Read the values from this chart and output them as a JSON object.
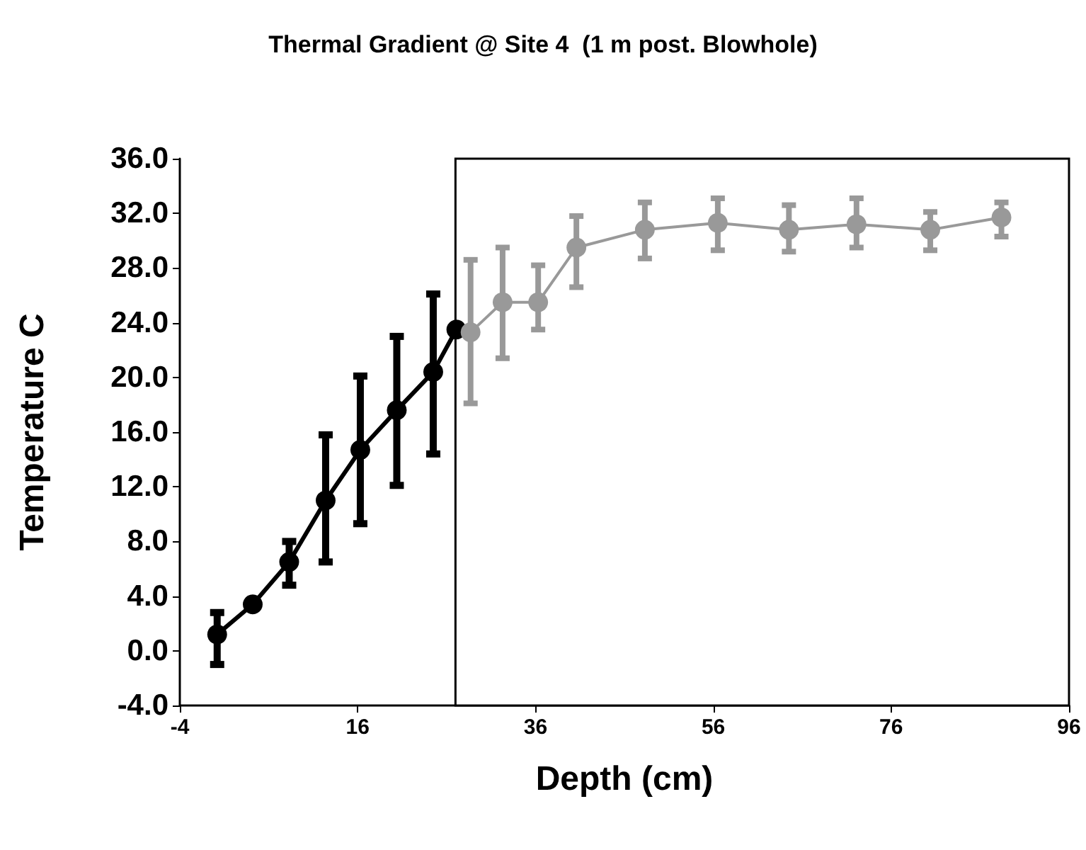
{
  "chart_data": {
    "type": "line",
    "title": "Thermal Gradient @ Site 4  (1 m post. Blowhole)",
    "xlabel": "Depth (cm)",
    "ylabel": "Temperature C",
    "series": [
      {
        "color": "#000000",
        "x": [
          0.2,
          4.2,
          8.3,
          12.4,
          16.3,
          20.4,
          24.5,
          27.1
        ],
        "values": [
          1.2,
          3.4,
          6.5,
          11.0,
          14.7,
          17.6,
          20.4,
          23.5
        ],
        "errors": [
          [
            -1.0,
            2.8
          ],
          null,
          [
            4.8,
            8.0
          ],
          [
            6.5,
            15.8
          ],
          [
            9.3,
            20.1
          ],
          [
            12.1,
            23.0
          ],
          [
            14.4,
            26.1
          ],
          null
        ]
      },
      {
        "color": "#999999",
        "x": [
          28.7,
          32.3,
          36.3,
          40.6,
          48.3,
          56.5,
          64.5,
          72.1,
          80.4,
          88.4
        ],
        "values": [
          23.3,
          25.5,
          25.5,
          29.5,
          30.8,
          31.3,
          30.8,
          31.2,
          30.8,
          31.7
        ],
        "errors": [
          [
            18.1,
            28.6
          ],
          [
            21.4,
            29.5
          ],
          [
            23.5,
            28.2
          ],
          [
            26.6,
            31.8
          ],
          [
            28.7,
            32.8
          ],
          [
            29.3,
            33.1
          ],
          [
            29.2,
            32.6
          ],
          [
            29.5,
            33.1
          ],
          [
            29.3,
            32.1
          ],
          [
            30.3,
            32.8
          ]
        ]
      }
    ],
    "xlim": [
      -4,
      96
    ],
    "xticks": [
      -4,
      16,
      36,
      56,
      76,
      96
    ],
    "ylim": [
      -4,
      36
    ],
    "yticks": [
      {
        "value": -4,
        "label": "-4.0"
      },
      {
        "value": 0,
        "label": "0.0"
      },
      {
        "value": 4,
        "label": "4.0"
      },
      {
        "value": 8,
        "label": "8.0"
      },
      {
        "value": 12,
        "label": "12.0"
      },
      {
        "value": 16,
        "label": "16.0"
      },
      {
        "value": 20,
        "label": "20.0"
      },
      {
        "value": 24,
        "label": "24.0"
      },
      {
        "value": 28,
        "label": "28.0"
      },
      {
        "value": 32,
        "label": "32.0"
      },
      {
        "value": 36,
        "label": "36.0"
      }
    ],
    "bands": [
      {
        "axis": "x",
        "from": 27,
        "to": 96,
        "color": "#ffffff"
      }
    ],
    "grid": false,
    "marker": "circle",
    "line_style": "solid"
  }
}
